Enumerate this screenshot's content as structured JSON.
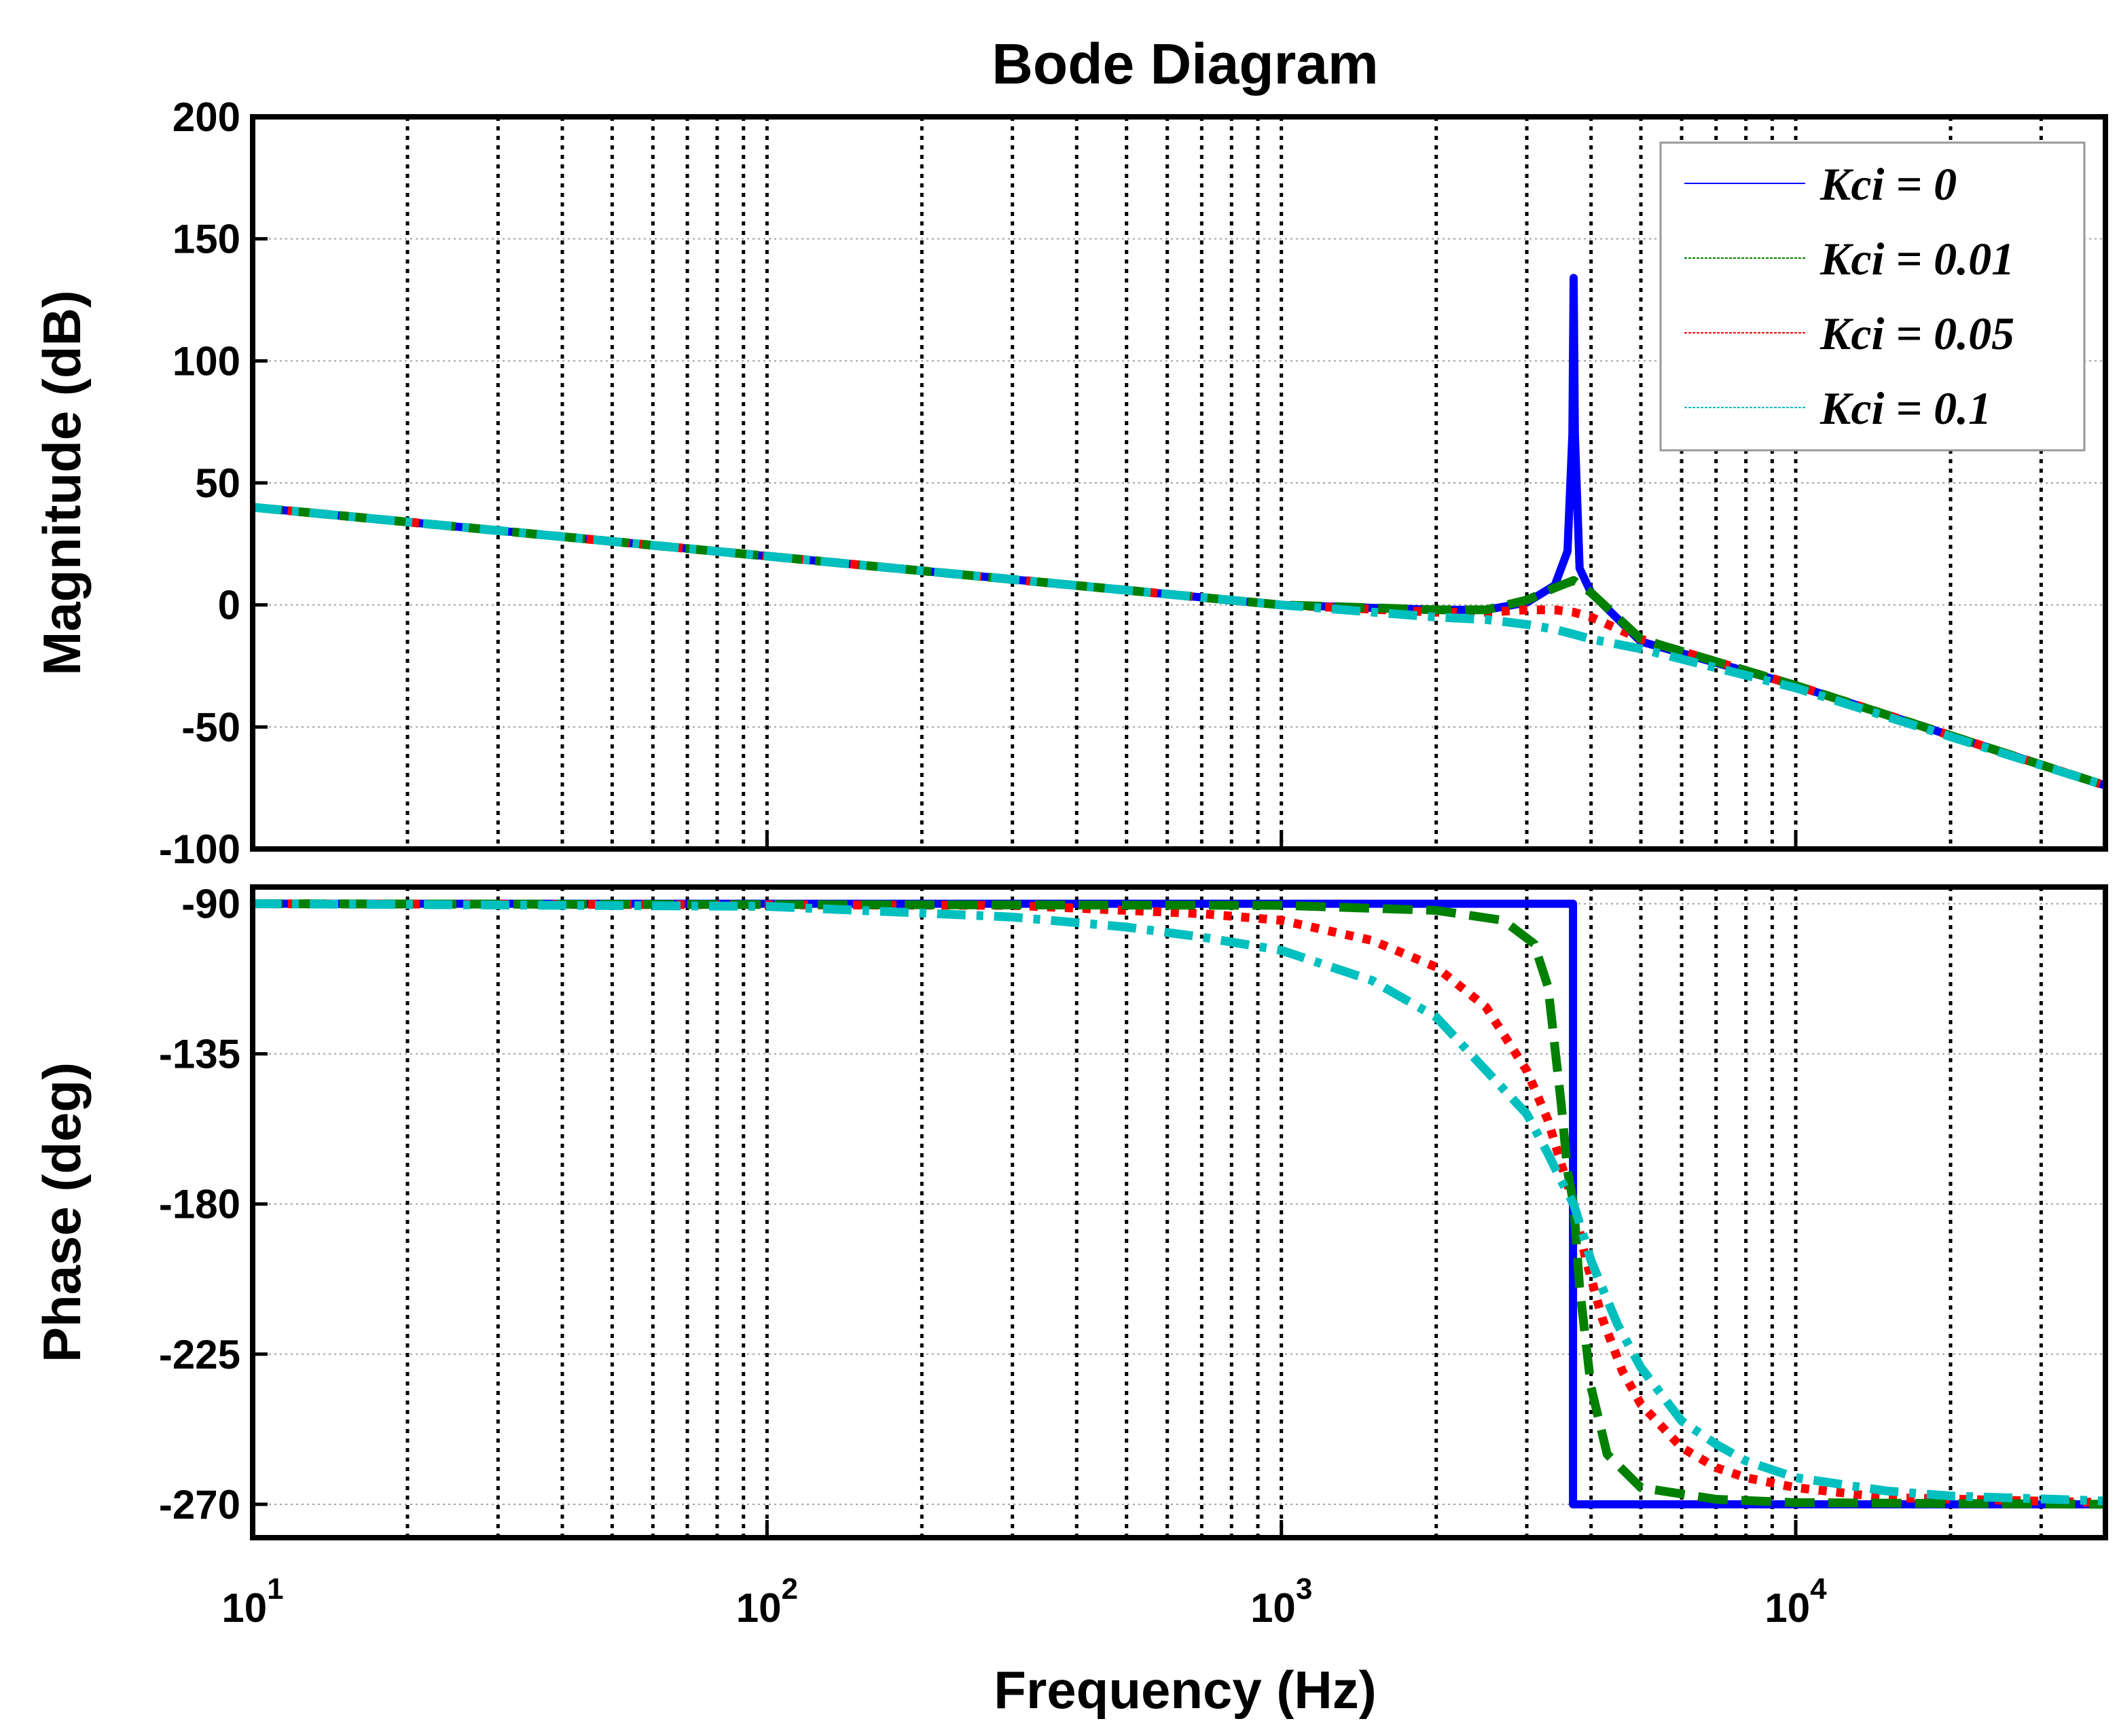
{
  "chart_data": {
    "type": "line",
    "title": "Bode Diagram",
    "xlabel": "Frequency  (Hz)",
    "xscale": "log",
    "xlim": [
      10,
      40000
    ],
    "x_ticks": [
      {
        "base": "10",
        "exp": "1"
      },
      {
        "base": "10",
        "exp": "2"
      },
      {
        "base": "10",
        "exp": "3"
      },
      {
        "base": "10",
        "exp": "4"
      }
    ],
    "grid": true,
    "legend_position": "top-right",
    "resonance_hz": 3700,
    "colors": {
      "Kci = 0": "#0000ff",
      "Kci = 0.01": "#008000",
      "Kci = 0.05": "#ff0000",
      "Kci = 0.1": "#00bfbf"
    },
    "magnitude": {
      "ylabel": "Magnitude (dB)",
      "ylim": [
        -100,
        200
      ],
      "ticks": [
        "200",
        "150",
        "100",
        "50",
        "0",
        "-50",
        "-100"
      ],
      "series": [
        {
          "name": "Kci = 0",
          "x": [
            10,
            100,
            1000,
            2000,
            2500,
            3000,
            3400,
            3600,
            3680,
            3700,
            3720,
            3800,
            4000,
            5000,
            10000,
            40000
          ],
          "y": [
            40,
            20,
            0,
            -2,
            -2,
            1,
            8,
            22,
            70,
            134,
            70,
            15,
            5,
            -15,
            -33,
            -74
          ]
        },
        {
          "name": "Kci = 0.01",
          "x": [
            10,
            100,
            1000,
            2000,
            2500,
            3000,
            3400,
            3700,
            4000,
            5000,
            10000,
            40000
          ],
          "y": [
            40,
            20,
            0,
            -2,
            -2,
            2,
            7,
            10,
            5,
            -14,
            -33,
            -74
          ]
        },
        {
          "name": "Kci = 0.05",
          "x": [
            10,
            100,
            1000,
            2000,
            2500,
            3000,
            3400,
            3700,
            4000,
            5000,
            10000,
            40000
          ],
          "y": [
            40,
            20,
            0,
            -3,
            -3,
            -2,
            -2,
            -3,
            -5,
            -14,
            -33,
            -74
          ]
        },
        {
          "name": "Kci = 0.1",
          "x": [
            10,
            100,
            1000,
            2000,
            2500,
            3000,
            3400,
            3700,
            4000,
            5000,
            10000,
            40000
          ],
          "y": [
            40,
            20,
            0,
            -5,
            -6,
            -8,
            -10,
            -12,
            -14,
            -18,
            -34,
            -74
          ]
        }
      ]
    },
    "phase": {
      "ylabel": "Phase (deg)",
      "ylim": [
        -280,
        -85
      ],
      "ticks": [
        "-90",
        "-135",
        "-180",
        "-225",
        "-270"
      ],
      "series": [
        {
          "name": "Kci = 0",
          "x": [
            10,
            3690,
            3690,
            40000
          ],
          "y": [
            -90,
            -90,
            -270,
            -270
          ]
        },
        {
          "name": "Kci = 0.01",
          "x": [
            10,
            1000,
            2000,
            2700,
            3100,
            3300,
            3500,
            3600,
            3700,
            3800,
            4000,
            4300,
            5000,
            7000,
            10000,
            40000
          ],
          "y": [
            -90,
            -90.5,
            -92,
            -95,
            -102,
            -115,
            -150,
            -170,
            -180,
            -205,
            -235,
            -255,
            -265,
            -268.5,
            -269.5,
            -270
          ]
        },
        {
          "name": "Kci = 0.05",
          "x": [
            10,
            300,
            700,
            1000,
            1500,
            2000,
            2500,
            3000,
            3300,
            3500,
            3700,
            3900,
            4200,
            4600,
            5000,
            6000,
            7000,
            8000,
            10000,
            15000,
            40000
          ],
          "y": [
            -90,
            -90.5,
            -93,
            -95,
            -101,
            -109,
            -121,
            -140,
            -155,
            -168,
            -180,
            -196,
            -214,
            -230,
            -240,
            -253,
            -259,
            -262,
            -265,
            -268,
            -269.5
          ]
        },
        {
          "name": "Kci = 0.1",
          "x": [
            10,
            100,
            300,
            500,
            700,
            1000,
            1500,
            2000,
            2500,
            3000,
            3300,
            3500,
            3700,
            4000,
            4500,
            5000,
            6000,
            7000,
            8000,
            10000,
            15000,
            20000,
            40000
          ],
          "y": [
            -90,
            -90.8,
            -94,
            -97,
            -100,
            -104,
            -113,
            -124,
            -140,
            -153,
            -165,
            -173,
            -180,
            -197,
            -216,
            -229,
            -245,
            -252,
            -257,
            -262,
            -266,
            -267.5,
            -269
          ]
        }
      ]
    },
    "legend": [
      "Kci = 0",
      "Kci = 0.01",
      "Kci = 0.05",
      "Kci = 0.1"
    ]
  }
}
